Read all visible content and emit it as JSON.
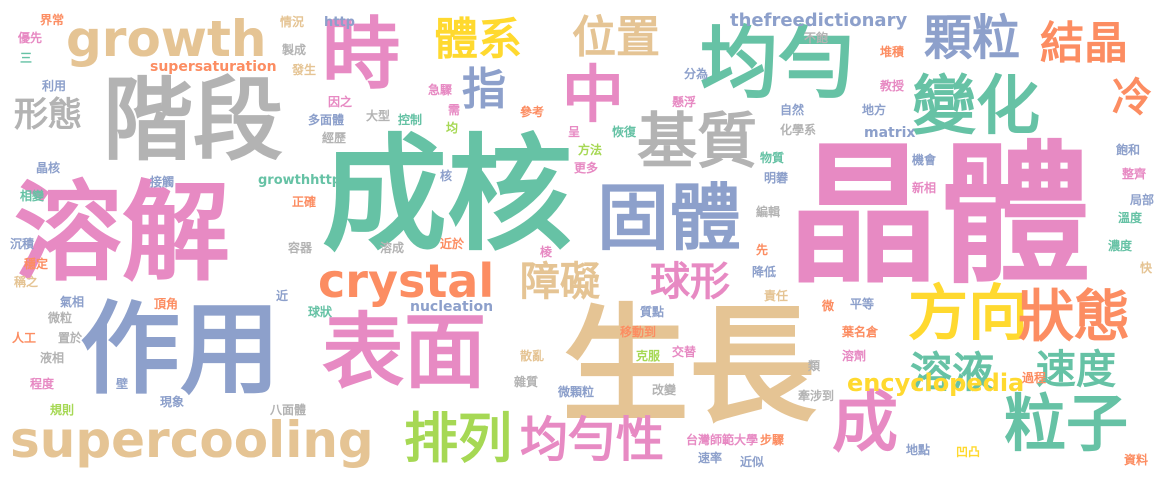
{
  "palette": {
    "pink": "#e78ac3",
    "teal": "#66c2a5",
    "blue": "#8da0cb",
    "orange": "#fc8d62",
    "green": "#a6d854",
    "yellow": "#ffd92f",
    "tan": "#e5c494",
    "gray": "#b3b3b3"
  },
  "words": [
    {
      "text": "晶體",
      "color": "#e78ac3"
    },
    {
      "text": "成核",
      "color": "#66c2a5"
    },
    {
      "text": "生長",
      "color": "#e5c494"
    },
    {
      "text": "溶解",
      "color": "#e78ac3"
    },
    {
      "text": "階段",
      "color": "#b3b3b3"
    },
    {
      "text": "作用",
      "color": "#8da0cb"
    },
    {
      "text": "表面",
      "color": "#e78ac3"
    },
    {
      "text": "固體",
      "color": "#8da0cb"
    },
    {
      "text": "均勻",
      "color": "#66c2a5"
    },
    {
      "text": "時",
      "color": "#e78ac3"
    },
    {
      "text": "growth",
      "color": "#e5c494"
    },
    {
      "text": "crystal",
      "color": "#fc8d62"
    },
    {
      "text": "supercooling",
      "color": "#e5c494"
    },
    {
      "text": "變化",
      "color": "#66c2a5"
    },
    {
      "text": "方向",
      "color": "#ffd92f"
    },
    {
      "text": "狀態",
      "color": "#fc8d62"
    },
    {
      "text": "粒子",
      "color": "#66c2a5"
    },
    {
      "text": "基質",
      "color": "#b3b3b3"
    },
    {
      "text": "中",
      "color": "#e78ac3"
    },
    {
      "text": "成",
      "color": "#e78ac3"
    },
    {
      "text": "排列",
      "color": "#a6d854"
    },
    {
      "text": "均勻性",
      "color": "#e78ac3"
    },
    {
      "text": "顆粒",
      "color": "#8da0cb"
    },
    {
      "text": "結晶",
      "color": "#fc8d62"
    },
    {
      "text": "體系",
      "color": "#ffd92f"
    },
    {
      "text": "位置",
      "color": "#e5c494"
    },
    {
      "text": "指",
      "color": "#8da0cb"
    },
    {
      "text": "冷",
      "color": "#fc8d62"
    },
    {
      "text": "溶液",
      "color": "#66c2a5"
    },
    {
      "text": "速度",
      "color": "#66c2a5"
    },
    {
      "text": "球形",
      "color": "#e78ac3"
    },
    {
      "text": "障礙",
      "color": "#e5c494"
    },
    {
      "text": "形態",
      "color": "#b3b3b3"
    },
    {
      "text": "encyclopedia",
      "color": "#ffd92f"
    },
    {
      "text": "thefreedictionary",
      "color": "#8da0cb"
    },
    {
      "text": "supersaturation",
      "color": "#fc8d62"
    },
    {
      "text": "nucleation",
      "color": "#8da0cb"
    },
    {
      "text": "matrix",
      "color": "#8da0cb"
    },
    {
      "text": "growthhttp",
      "color": "#66c2a5"
    },
    {
      "text": "http",
      "color": "#8da0cb"
    },
    {
      "text": "界常",
      "color": "#fc8d62"
    },
    {
      "text": "優先",
      "color": "#e78ac3"
    },
    {
      "text": "三",
      "color": "#66c2a5"
    },
    {
      "text": "利用",
      "color": "#8da0cb"
    },
    {
      "text": "晶核",
      "color": "#8da0cb"
    },
    {
      "text": "相變",
      "color": "#66c2a5"
    },
    {
      "text": "沉積",
      "color": "#8da0cb"
    },
    {
      "text": "穩定",
      "color": "#fc8d62"
    },
    {
      "text": "稱之",
      "color": "#e5c494"
    },
    {
      "text": "氣相",
      "color": "#8da0cb"
    },
    {
      "text": "微粒",
      "color": "#b3b3b3"
    },
    {
      "text": "人工",
      "color": "#fc8d62"
    },
    {
      "text": "置於",
      "color": "#b3b3b3"
    },
    {
      "text": "液相",
      "color": "#b3b3b3"
    },
    {
      "text": "程度",
      "color": "#e78ac3"
    },
    {
      "text": "規則",
      "color": "#a6d854"
    },
    {
      "text": "壁",
      "color": "#8da0cb"
    },
    {
      "text": "現象",
      "color": "#8da0cb"
    },
    {
      "text": "頂角",
      "color": "#fc8d62"
    },
    {
      "text": "接觸",
      "color": "#8da0cb"
    },
    {
      "text": "情況",
      "color": "#e5c494"
    },
    {
      "text": "製成",
      "color": "#b3b3b3"
    },
    {
      "text": "發生",
      "color": "#e5c494"
    },
    {
      "text": "因之",
      "color": "#e78ac3"
    },
    {
      "text": "多面體",
      "color": "#8da0cb"
    },
    {
      "text": "大型",
      "color": "#b3b3b3"
    },
    {
      "text": "經歷",
      "color": "#b3b3b3"
    },
    {
      "text": "控制",
      "color": "#66c2a5"
    },
    {
      "text": "急驟",
      "color": "#e78ac3"
    },
    {
      "text": "需",
      "color": "#e78ac3"
    },
    {
      "text": "均",
      "color": "#a6d854"
    },
    {
      "text": "參考",
      "color": "#fc8d62"
    },
    {
      "text": "核",
      "color": "#8da0cb"
    },
    {
      "text": "呈",
      "color": "#e78ac3"
    },
    {
      "text": "方法",
      "color": "#a6d854"
    },
    {
      "text": "更多",
      "color": "#e78ac3"
    },
    {
      "text": "恢復",
      "color": "#66c2a5"
    },
    {
      "text": "正確",
      "color": "#fc8d62"
    },
    {
      "text": "容器",
      "color": "#b3b3b3"
    },
    {
      "text": "溶成",
      "color": "#b3b3b3"
    },
    {
      "text": "近於",
      "color": "#fc8d62"
    },
    {
      "text": "棱",
      "color": "#e78ac3"
    },
    {
      "text": "近",
      "color": "#8da0cb"
    },
    {
      "text": "球狀",
      "color": "#66c2a5"
    },
    {
      "text": "八面體",
      "color": "#b3b3b3"
    },
    {
      "text": "不飽",
      "color": "#b3b3b3"
    },
    {
      "text": "分為",
      "color": "#8da0cb"
    },
    {
      "text": "懸浮",
      "color": "#e78ac3"
    },
    {
      "text": "堆積",
      "color": "#fc8d62"
    },
    {
      "text": "教授",
      "color": "#e78ac3"
    },
    {
      "text": "自然",
      "color": "#8da0cb"
    },
    {
      "text": "地方",
      "color": "#8da0cb"
    },
    {
      "text": "化學系",
      "color": "#b3b3b3"
    },
    {
      "text": "物質",
      "color": "#66c2a5"
    },
    {
      "text": "明礬",
      "color": "#8da0cb"
    },
    {
      "text": "機會",
      "color": "#8da0cb"
    },
    {
      "text": "新相",
      "color": "#e78ac3"
    },
    {
      "text": "飽和",
      "color": "#8da0cb"
    },
    {
      "text": "整齊",
      "color": "#e78ac3"
    },
    {
      "text": "局部",
      "color": "#8da0cb"
    },
    {
      "text": "溫度",
      "color": "#66c2a5"
    },
    {
      "text": "濃度",
      "color": "#66c2a5"
    },
    {
      "text": "快",
      "color": "#e5c494"
    },
    {
      "text": "編輯",
      "color": "#b3b3b3"
    },
    {
      "text": "先",
      "color": "#fc8d62"
    },
    {
      "text": "降低",
      "color": "#8da0cb"
    },
    {
      "text": "責任",
      "color": "#e5c494"
    },
    {
      "text": "微",
      "color": "#fc8d62"
    },
    {
      "text": "平等",
      "color": "#8da0cb"
    },
    {
      "text": "葉名倉",
      "color": "#fc8d62"
    },
    {
      "text": "溶劑",
      "color": "#e78ac3"
    },
    {
      "text": "過程",
      "color": "#fc8d62"
    },
    {
      "text": "移動到",
      "color": "#fc8d62"
    },
    {
      "text": "質點",
      "color": "#8da0cb"
    },
    {
      "text": "散亂",
      "color": "#e5c494"
    },
    {
      "text": "克服",
      "color": "#a6d854"
    },
    {
      "text": "交替",
      "color": "#e78ac3"
    },
    {
      "text": "雜質",
      "color": "#b3b3b3"
    },
    {
      "text": "微顆粒",
      "color": "#8da0cb"
    },
    {
      "text": "改變",
      "color": "#b3b3b3"
    },
    {
      "text": "類",
      "color": "#b3b3b3"
    },
    {
      "text": "牽涉到",
      "color": "#b3b3b3"
    },
    {
      "text": "台灣師範大學",
      "color": "#e78ac3"
    },
    {
      "text": "步驟",
      "color": "#fc8d62"
    },
    {
      "text": "速率",
      "color": "#8da0cb"
    },
    {
      "text": "近似",
      "color": "#8da0cb"
    },
    {
      "text": "地點",
      "color": "#8da0cb"
    },
    {
      "text": "凹凸",
      "color": "#ffd92f"
    },
    {
      "text": "資料",
      "color": "#fc8d62"
    }
  ]
}
